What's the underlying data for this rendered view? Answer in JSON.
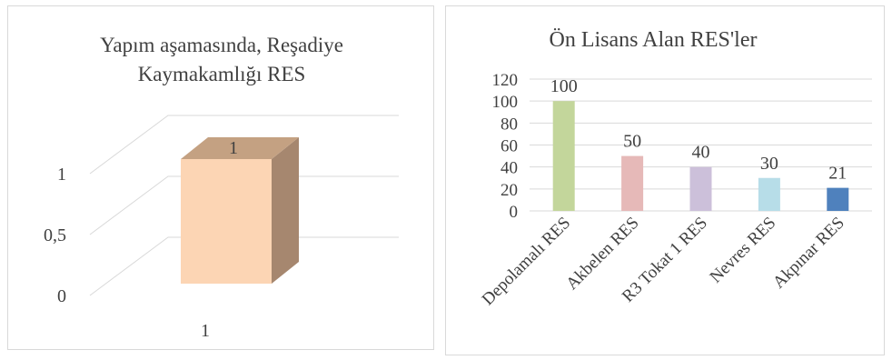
{
  "chart_data": [
    {
      "type": "bar",
      "title": "Yapım aşamasında, Reşadiye Kaymakamlığı RES",
      "title_lines": [
        "Yapım aşamasında, Reşadiye",
        "Kaymakamlığı RES"
      ],
      "categories": [
        "1"
      ],
      "values": [
        1
      ],
      "data_labels": [
        "1"
      ],
      "y_tick_labels": [
        "0",
        "0,5",
        "1"
      ],
      "ylim": [
        0,
        1
      ],
      "style": "3d",
      "grid": true,
      "colors": {
        "front": "#fcd5b4",
        "side": "#a6876f",
        "top": "#c4a182"
      }
    },
    {
      "type": "bar",
      "title": "Ön Lisans Alan RES'ler",
      "categories": [
        "Depolamalı RES",
        "Akbelen RES",
        "R3 Tokat 1 RES",
        "Nevres RES",
        "Akpınar RES"
      ],
      "values": [
        100,
        50,
        40,
        30,
        21
      ],
      "data_labels": [
        "100",
        "50",
        "40",
        "30",
        "21"
      ],
      "y_tick_labels": [
        "0",
        "20",
        "40",
        "60",
        "80",
        "100",
        "120"
      ],
      "ylim": [
        0,
        120
      ],
      "grid": true,
      "colors": [
        "#c3d69b",
        "#e6b9b8",
        "#ccc0da",
        "#b7dde8",
        "#4f81bd"
      ]
    }
  ]
}
